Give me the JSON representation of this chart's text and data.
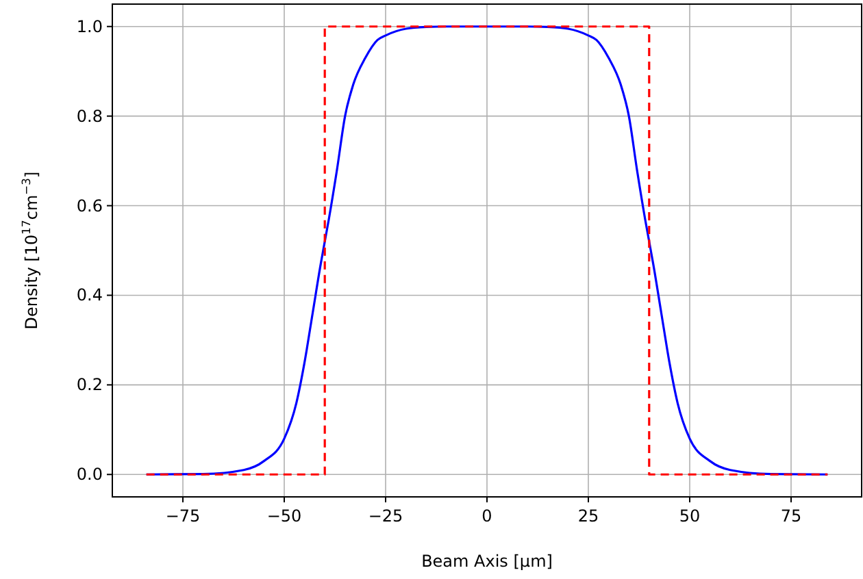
{
  "chart_data": {
    "type": "line",
    "xlabel": "Beam Axis [μm]",
    "ylabel": "Density [10$^{17}$cm$^{−3}$]",
    "xlim": [
      -92.4,
      92.4
    ],
    "ylim": [
      -0.05,
      1.05
    ],
    "xticks": [
      {
        "value": -75,
        "label": "−75"
      },
      {
        "value": -50,
        "label": "−50"
      },
      {
        "value": -25,
        "label": "−25"
      },
      0,
      25,
      50,
      75
    ],
    "yticks": [
      {
        "value": 0,
        "label": "0.0"
      },
      {
        "value": 0.2,
        "label": "0.2"
      },
      {
        "value": 0.4,
        "label": "0.4"
      },
      {
        "value": 0.6,
        "label": "0.6"
      },
      {
        "value": 0.8,
        "label": "0.8"
      },
      {
        "value": 1,
        "label": "1.0"
      }
    ],
    "grid": true,
    "marker": "none",
    "series": [
      {
        "color": "#0000ff",
        "line_style": "solid",
        "x": [
          -84,
          -70,
          -60,
          -55,
          -50,
          -47,
          -45,
          -43,
          -41,
          -40,
          -39,
          -37,
          -35,
          -33,
          -30,
          -27,
          -25,
          -20,
          -15,
          -10,
          0,
          10,
          15,
          20,
          25,
          27,
          30,
          33,
          35,
          37,
          39,
          40,
          41,
          43,
          45,
          47,
          50,
          55,
          60,
          70,
          84
        ],
        "values": [
          0,
          0.001,
          0.01,
          0.03,
          0.08,
          0.16,
          0.25,
          0.36,
          0.47,
          0.52,
          0.57,
          0.68,
          0.8,
          0.87,
          0.93,
          0.97,
          0.98,
          0.995,
          0.999,
          1,
          1,
          1,
          0.999,
          0.995,
          0.98,
          0.97,
          0.93,
          0.87,
          0.8,
          0.68,
          0.57,
          0.52,
          0.47,
          0.36,
          0.25,
          0.16,
          0.08,
          0.03,
          0.01,
          0.001,
          0
        ]
      },
      {
        "color": "#ff0000",
        "line_style": "dashed",
        "x": [
          -84,
          -40,
          -40,
          40,
          40,
          84
        ],
        "values": [
          0,
          0,
          1,
          1,
          0,
          0
        ]
      }
    ]
  }
}
